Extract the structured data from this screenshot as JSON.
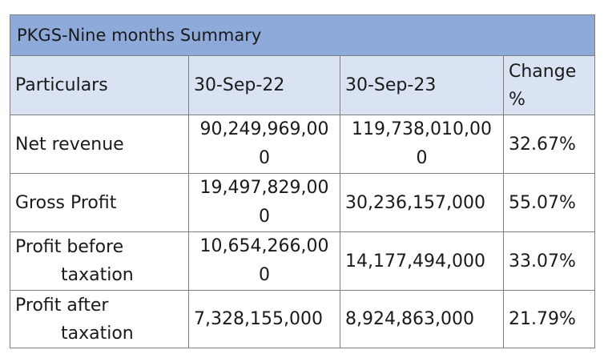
{
  "table": {
    "title": "PKGS-Nine months Summary",
    "headers": {
      "particulars": "Particulars",
      "col1": "30-Sep-22",
      "col2": "30-Sep-23",
      "change_line1": "Change",
      "change_line2": "%"
    },
    "rows": [
      {
        "label_line1": "Net revenue",
        "label_line2": "",
        "v1_line1": "90,249,969,00",
        "v1_line2": "0",
        "v2_line1": "119,738,010,00",
        "v2_line2": "0",
        "change": "32.67%"
      },
      {
        "label_line1": "Gross Profit",
        "label_line2": "",
        "v1_line1": "19,497,829,00",
        "v1_line2": "0",
        "v2_line1": "30,236,157,000",
        "v2_line2": "",
        "change": "55.07%"
      },
      {
        "label_line1": "Profit before",
        "label_line2": "taxation",
        "v1_line1": "10,654,266,00",
        "v1_line2": "0",
        "v2_line1": "14,177,494,000",
        "v2_line2": "",
        "change": "33.07%"
      },
      {
        "label_line1": "Profit after",
        "label_line2": "taxation",
        "v1_line1": "7,328,155,000",
        "v1_line2": "",
        "v2_line1": "8,924,863,000",
        "v2_line2": "",
        "change": "21.79%"
      }
    ]
  }
}
